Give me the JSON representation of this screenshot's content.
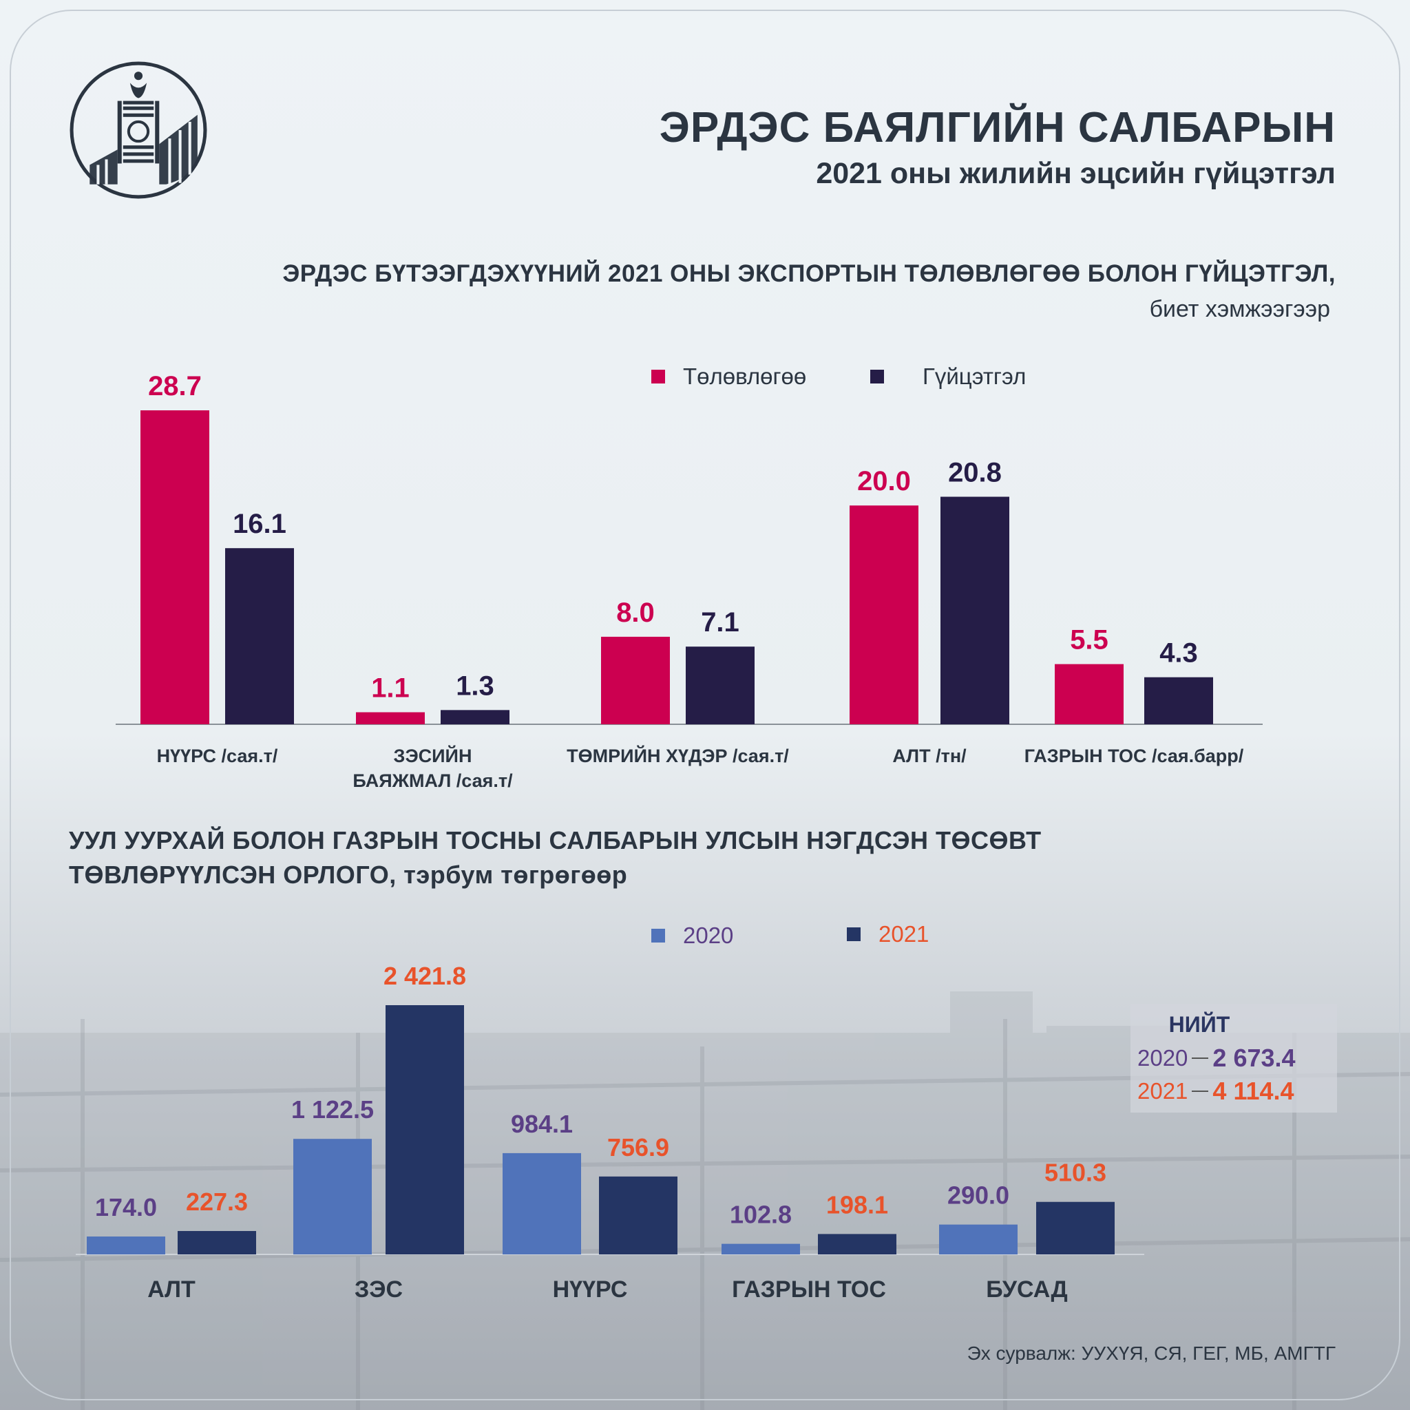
{
  "header": {
    "title": "ЭРДЭС БАЯЛГИЙН САЛБАРЫН",
    "subtitle": "2021 оны жилийн эцсийн гүйцэтгэл"
  },
  "chart_data": [
    {
      "type": "bar",
      "title": "ЭРДЭС БҮТЭЭГДЭХҮҮНИЙ 2021 ОНЫ ЭКСПОРТЫН ТӨЛӨВЛӨГӨӨ БОЛОН ГҮЙЦЭТГЭЛ,",
      "subtitle": "биет хэмжээгээр",
      "categories": [
        "НҮҮРС /сая.т/",
        "ЗЭСИЙН\nБАЯЖМАЛ /сая.т/",
        "ТӨМРИЙН ХҮДЭР /сая.т/",
        "АЛТ /тн/",
        "ГАЗРЫН ТОС /сая.барр/"
      ],
      "series": [
        {
          "name": "Төлөвлөгөө",
          "color": "#cc0050",
          "values": [
            28.7,
            1.1,
            8.0,
            20.0,
            5.5
          ],
          "labels": [
            "28.7",
            "1.1",
            "8.0",
            "20.0",
            "5.5"
          ]
        },
        {
          "name": "Гүйцэтгэл",
          "color": "#251d47",
          "values": [
            16.1,
            1.3,
            7.1,
            20.8,
            4.3
          ],
          "labels": [
            "16.1",
            "1.3",
            "7.1",
            "20.8",
            "4.3"
          ]
        }
      ],
      "legend_position": "top-right"
    },
    {
      "type": "bar",
      "title": "УУЛ УУРХАЙ БОЛОН ГАЗРЫН ТОСНЫ САЛБАРЫН УЛСЫН НЭГДСЭН ТӨСӨВТ ТӨВЛӨРҮҮЛСЭН ОРЛОГО, тэрбум төгрөгөөр",
      "categories": [
        "АЛТ",
        "ЗЭС",
        "НҮҮРС",
        "ГАЗРЫН ТОС",
        "БУСАД"
      ],
      "series": [
        {
          "name": "2020",
          "color": "#5073ba",
          "label_color": "#5b3f86",
          "values": [
            174.0,
            1122.5,
            984.1,
            102.8,
            290.0
          ],
          "labels": [
            "174.0",
            "1 122.5",
            "984.1",
            "102.8",
            "290.0"
          ]
        },
        {
          "name": "2021",
          "color": "#243564",
          "label_color": "#e8532b",
          "values": [
            227.3,
            2421.8,
            756.9,
            198.1,
            510.3
          ],
          "labels": [
            "227.3",
            "2 421.8",
            "756.9",
            "198.1",
            "510.3"
          ]
        }
      ],
      "legend_position": "top",
      "totals": {
        "title": "НИЙТ",
        "rows": [
          {
            "year": "2020",
            "value": "2 673.4",
            "year_color": "#5b3f86",
            "value_color": "#5b3f86"
          },
          {
            "year": "2021",
            "value": "4 114.4",
            "year_color": "#e8532b",
            "value_color": "#e8532b"
          }
        ]
      }
    }
  ],
  "source": "Эх сурвалж: УУХҮЯ, СЯ, ГЕГ, МБ, АМГТГ"
}
